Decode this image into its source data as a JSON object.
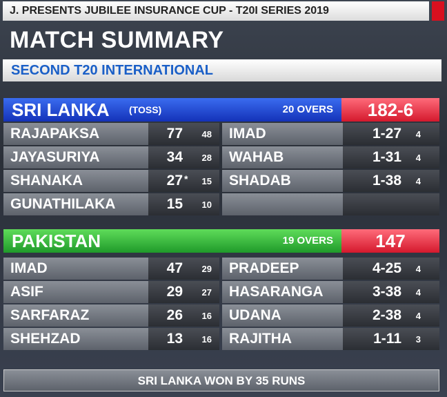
{
  "header": {
    "series": "J. PRESENTS JUBILEE INSURANCE CUP - T20I SERIES 2019",
    "title": "MATCH SUMMARY",
    "subtitle": "SECOND T20 INTERNATIONAL"
  },
  "innings": [
    {
      "team": "SRI LANKA",
      "toss": "(TOSS)",
      "overs": "20 OVERS",
      "score": "182-6",
      "batting": [
        {
          "name": "RAJAPAKSA",
          "runs": 77,
          "balls": 48
        },
        {
          "name": "JAYASURIYA",
          "runs": 34,
          "balls": 28
        },
        {
          "name": "SHANAKA",
          "runs": 27,
          "notout": "*",
          "balls": 15
        },
        {
          "name": "GUNATHILAKA",
          "runs": 15,
          "balls": 10
        }
      ],
      "bowling": [
        {
          "name": "IMAD",
          "figures": "1-27",
          "overs": 4
        },
        {
          "name": "WAHAB",
          "figures": "1-31",
          "overs": 4
        },
        {
          "name": "SHADAB",
          "figures": "1-38",
          "overs": 4
        }
      ]
    },
    {
      "team": "PAKISTAN",
      "overs": "19 OVERS",
      "score": 147,
      "batting": [
        {
          "name": "IMAD",
          "runs": 47,
          "balls": 29
        },
        {
          "name": "ASIF",
          "runs": 29,
          "balls": 27
        },
        {
          "name": "SARFARAZ",
          "runs": 26,
          "balls": 16
        },
        {
          "name": "SHEHZAD",
          "runs": 13,
          "balls": 16
        }
      ],
      "bowling": [
        {
          "name": "PRADEEP",
          "figures": "4-25",
          "overs": 4
        },
        {
          "name": "HASARANGA",
          "figures": "3-38",
          "overs": 4
        },
        {
          "name": "UDANA",
          "figures": "2-38",
          "overs": 4
        },
        {
          "name": "RAJITHA",
          "figures": "1-11",
          "overs": 3
        }
      ]
    }
  ],
  "result": "SRI LANKA WON BY 35 RUNS"
}
